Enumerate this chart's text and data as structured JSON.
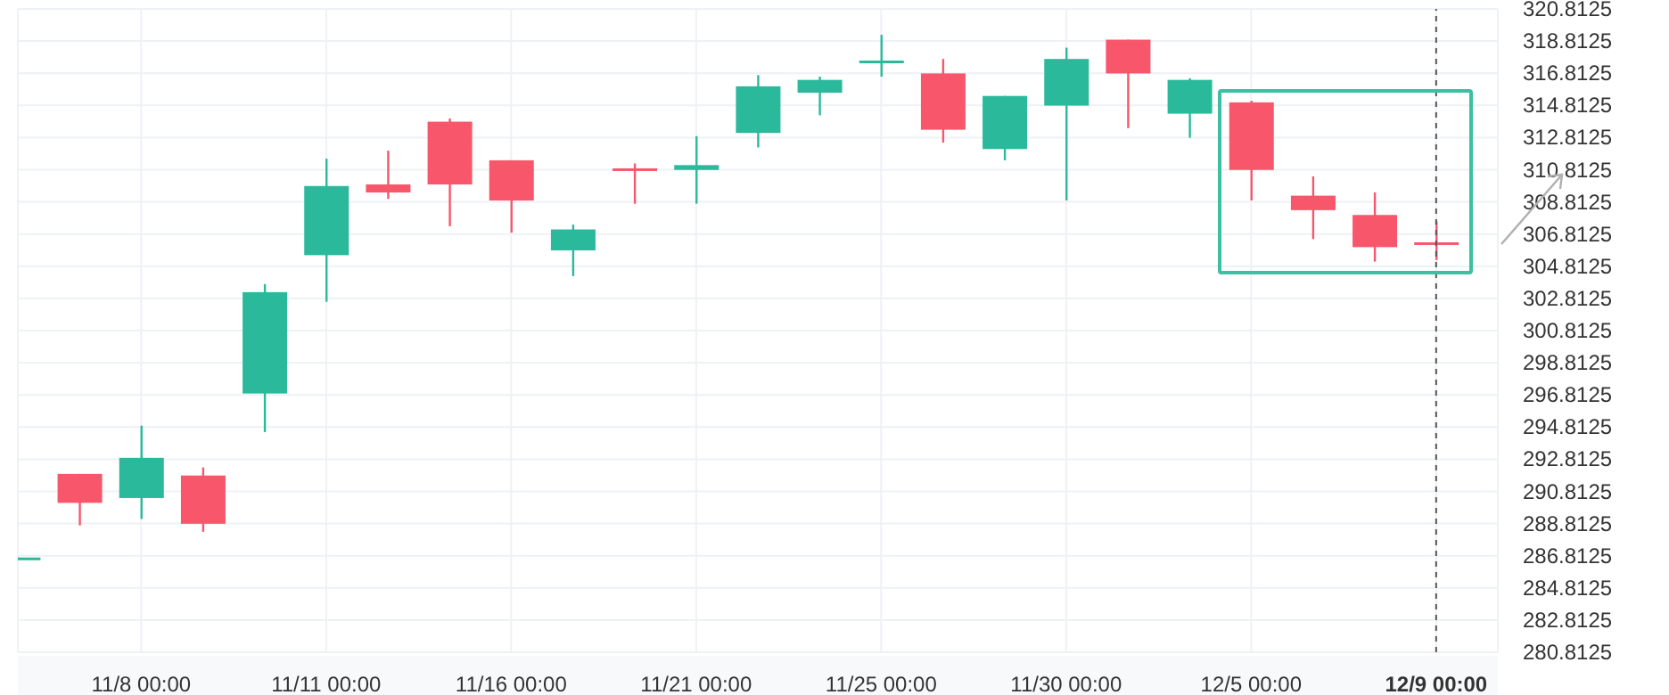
{
  "chart_data": {
    "type": "candlestick",
    "categories": [
      null,
      null,
      "11/8 00:00",
      null,
      null,
      "11/11 00:00",
      null,
      null,
      "11/16 00:00",
      null,
      null,
      "11/21 00:00",
      null,
      null,
      "11/25 00:00",
      null,
      null,
      "11/30 00:00",
      null,
      null,
      "12/5 00:00",
      null,
      null,
      "12/9 00:00"
    ],
    "ohlc": [
      [
        286.6,
        286.7,
        286.6,
        286.7
      ],
      [
        291.9,
        291.9,
        288.7,
        290.1
      ],
      [
        290.4,
        294.9,
        289.1,
        292.9
      ],
      [
        291.8,
        292.3,
        288.3,
        288.8
      ],
      [
        296.9,
        303.7,
        294.5,
        303.2
      ],
      [
        305.5,
        311.5,
        302.6,
        309.8
      ],
      [
        309.9,
        312.0,
        309.0,
        309.4
      ],
      [
        313.8,
        314.0,
        307.3,
        309.9
      ],
      [
        311.4,
        311.4,
        306.9,
        308.9
      ],
      [
        305.8,
        307.4,
        304.2,
        307.1
      ],
      [
        310.9,
        311.2,
        308.7,
        310.8
      ],
      [
        310.8,
        312.9,
        308.7,
        311.1
      ],
      [
        313.1,
        316.7,
        312.2,
        316.0
      ],
      [
        315.6,
        316.6,
        314.2,
        316.4
      ],
      [
        317.5,
        319.2,
        316.6,
        317.6
      ],
      [
        316.8,
        317.7,
        312.5,
        313.3
      ],
      [
        312.1,
        315.4,
        311.4,
        315.4
      ],
      [
        314.8,
        318.4,
        308.9,
        317.7
      ],
      [
        318.9,
        318.9,
        313.4,
        316.8
      ],
      [
        314.3,
        316.5,
        312.8,
        316.4
      ],
      [
        315.0,
        315.1,
        308.9,
        310.8
      ],
      [
        309.2,
        310.4,
        306.5,
        308.3
      ],
      [
        308.0,
        309.4,
        305.1,
        306.0
      ],
      [
        306.3,
        307.6,
        305.2,
        306.2
      ]
    ],
    "colors": [
      "#2ab99b",
      "#f7566b",
      "#2ab99b",
      "#f7566b",
      "#2ab99b",
      "#2ab99b",
      "#f7566b",
      "#f7566b",
      "#f7566b",
      "#2ab99b",
      "#f7566b",
      "#2ab99b",
      "#2ab99b",
      "#2ab99b",
      "#2ab99b",
      "#f7566b",
      "#2ab99b",
      "#2ab99b",
      "#f7566b",
      "#2ab99b",
      "#f7566b",
      "#f7566b",
      "#f7566b",
      "#f7566b"
    ],
    "ylim": [
      280.8125,
      320.8125
    ],
    "yticks": [
      280.8125,
      282.8125,
      284.8125,
      286.8125,
      288.8125,
      290.8125,
      292.8125,
      294.8125,
      296.8125,
      298.8125,
      300.8125,
      302.8125,
      304.8125,
      306.8125,
      308.8125,
      310.8125,
      312.8125,
      314.8125,
      316.8125,
      318.8125,
      320.8125
    ],
    "ref_lines": [
      {
        "axis": "x",
        "value": "12/9 00:00",
        "color": "#555555",
        "line_style": "dashed"
      }
    ],
    "grid": true
  }
}
